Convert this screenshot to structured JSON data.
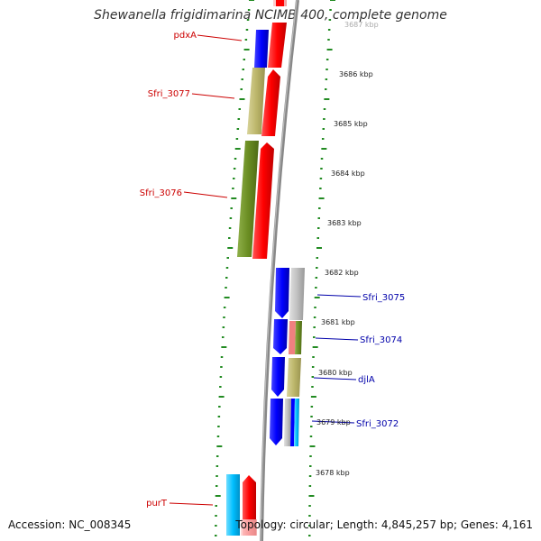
{
  "title": "Shewanella frigidimarina NCIMB 400, complete genome",
  "accession": "Accession: NC_008345",
  "summary": "Topology: circular; Length: 4,845,257 bp; Genes: 4,161",
  "colors": {
    "forward_genes": "#ff0000",
    "reverse_genes": "#0000ff",
    "label_left": "#cc0000",
    "label_right": "#0000aa",
    "backbone": "#888888",
    "ruler_ticks": "#228b22"
  },
  "scale_labels": [
    "3687 kbp",
    "3686 kbp",
    "3685 kbp",
    "3684 kbp",
    "3683 kbp",
    "3682 kbp",
    "3681 kbp",
    "3680 kbp",
    "3679 kbp",
    "3678 kbp"
  ],
  "gene_labels_left": [
    "pdxA",
    "Sfri_3077",
    "Sfri_3076",
    "purT"
  ],
  "gene_labels_right": [
    "Sfri_3075",
    "Sfri_3074",
    "djlA",
    "Sfri_3072"
  ]
}
